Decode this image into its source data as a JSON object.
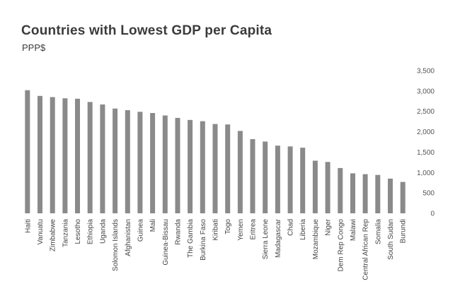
{
  "chart_data": {
    "type": "bar",
    "title": "Countries with Lowest GDP per Capita",
    "subtitle": "PPP$",
    "xlabel": "",
    "ylabel": "",
    "ylim": [
      0,
      3500
    ],
    "yticks": [
      0,
      500,
      1000,
      1500,
      2000,
      2500,
      3000,
      3500
    ],
    "ytick_labels": [
      "0",
      "500",
      "1,000",
      "1,500",
      "2,000",
      "2,500",
      "3,000",
      "3,500"
    ],
    "y_axis_side": "right",
    "grid": false,
    "legend": "none",
    "bar_color": "#8a8a8a",
    "categories": [
      "Haiti",
      "Vanuatu",
      "Zimbabwe",
      "Tanzania",
      "Lesotho",
      "Ethiopia",
      "Uganda",
      "Solomon Islands",
      "Afghanistan",
      "Guinea",
      "Mali",
      "Guinea-Bissau",
      "Rwanda",
      "The Gambia",
      "Burkina Faso",
      "Kiribati",
      "Togo",
      "Yemen",
      "Eritrea",
      "Sierra Leone",
      "Madagascar",
      "Chad",
      "Liberia",
      "Mozambique",
      "Niger",
      "Dem Rep Congo",
      "Malawi",
      "Central African Rep",
      "Somalia",
      "South Sudan",
      "Burundi"
    ],
    "values": [
      3020,
      2880,
      2850,
      2820,
      2810,
      2730,
      2670,
      2570,
      2530,
      2490,
      2460,
      2400,
      2340,
      2290,
      2260,
      2190,
      2180,
      2020,
      1820,
      1760,
      1660,
      1640,
      1610,
      1290,
      1260,
      1110,
      980,
      960,
      940,
      850,
      770
    ]
  }
}
